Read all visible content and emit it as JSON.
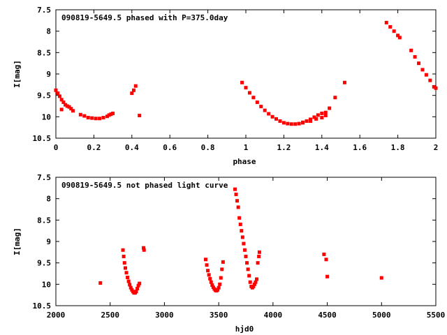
{
  "chart_data": [
    {
      "type": "scatter",
      "title": "090819-5649.5 phased with P=375.0day",
      "xlabel": "phase",
      "ylabel": "I[mag]",
      "xlim": [
        0,
        2
      ],
      "ylim": [
        7.5,
        10.5
      ],
      "y_inverted": true,
      "x_ticks": [
        "0",
        "0.2",
        "0.4",
        "0.6",
        "0.8",
        "1",
        "1.2",
        "1.4",
        "1.6",
        "1.8",
        "2"
      ],
      "y_ticks": [
        "7.5",
        "8",
        "8.5",
        "9",
        "9.5",
        "10",
        "10.5"
      ],
      "marker_color": "#ff0000",
      "grid": false,
      "series": [
        {
          "x": [
            0.0,
            0.01,
            0.02,
            0.03,
            0.04,
            0.05,
            0.06,
            0.07,
            0.08,
            0.09,
            0.03,
            0.13,
            0.15,
            0.17,
            0.19,
            0.21,
            0.23,
            0.25,
            0.27,
            0.28,
            0.29,
            0.3,
            0.4,
            0.41,
            0.42,
            0.44,
            0.98,
            1.0,
            1.02,
            1.04,
            1.06,
            1.08,
            1.1,
            1.12,
            1.14,
            1.16,
            1.18,
            1.2,
            1.22,
            1.24,
            1.26,
            1.28,
            1.3,
            1.32,
            1.34,
            1.36,
            1.38,
            1.4,
            1.42,
            1.3,
            1.34,
            1.37,
            1.4,
            1.42,
            1.44,
            1.47,
            1.52,
            1.74,
            1.76,
            1.78,
            1.8,
            1.81,
            1.87,
            1.89,
            1.91,
            1.93,
            1.95,
            1.97,
            1.99,
            2.0
          ],
          "y": [
            9.38,
            9.45,
            9.52,
            9.6,
            9.66,
            9.72,
            9.75,
            9.77,
            9.81,
            9.86,
            9.83,
            9.95,
            9.98,
            10.02,
            10.03,
            10.04,
            10.04,
            10.02,
            9.99,
            9.96,
            9.94,
            9.92,
            9.45,
            9.38,
            9.28,
            9.97,
            9.2,
            9.32,
            9.44,
            9.55,
            9.66,
            9.76,
            9.85,
            9.93,
            10.0,
            10.05,
            10.1,
            10.14,
            10.16,
            10.17,
            10.17,
            10.16,
            10.13,
            10.1,
            10.06,
            10.01,
            9.96,
            9.92,
            9.9,
            10.14,
            10.1,
            10.05,
            10.02,
            9.97,
            9.8,
            9.55,
            9.2,
            7.8,
            7.9,
            8.0,
            8.1,
            8.15,
            8.45,
            8.6,
            8.75,
            8.9,
            9.02,
            9.15,
            9.3,
            9.33
          ]
        }
      ]
    },
    {
      "type": "scatter",
      "title": "090819-5649.5 not phased light curve",
      "xlabel": "hjd0",
      "ylabel": "I[mag]",
      "xlim": [
        2000,
        5500
      ],
      "ylim": [
        7.5,
        10.5
      ],
      "y_inverted": true,
      "x_ticks": [
        "2000",
        "2500",
        "3000",
        "3500",
        "4000",
        "4500",
        "5000",
        "5500"
      ],
      "y_ticks": [
        "7.5",
        "8",
        "8.5",
        "9",
        "9.5",
        "10",
        "10.5"
      ],
      "marker_color": "#ff0000",
      "grid": false,
      "series": [
        {
          "x": [
            2410,
            2618,
            2625,
            2632,
            2640,
            2650,
            2660,
            2670,
            2680,
            2690,
            2700,
            2710,
            2720,
            2730,
            2740,
            2750,
            2760,
            2770,
            2808,
            2812,
            3380,
            3390,
            3400,
            3410,
            3420,
            3430,
            3440,
            3450,
            3460,
            3470,
            3480,
            3490,
            3500,
            3510,
            3520,
            3530,
            3540,
            3650,
            3660,
            3670,
            3680,
            3690,
            3700,
            3710,
            3720,
            3730,
            3740,
            3750,
            3760,
            3770,
            3780,
            3790,
            3800,
            3810,
            3820,
            3830,
            3840,
            3850,
            3860,
            3870,
            3875,
            4470,
            4490,
            4500,
            5000
          ],
          "y": [
            9.97,
            9.2,
            9.35,
            9.5,
            9.62,
            9.73,
            9.84,
            9.93,
            10.01,
            10.08,
            10.13,
            10.17,
            10.2,
            10.2,
            10.17,
            10.1,
            10.03,
            9.98,
            9.15,
            9.2,
            9.42,
            9.55,
            9.68,
            9.78,
            9.87,
            9.95,
            10.02,
            10.07,
            10.11,
            10.14,
            10.15,
            10.13,
            10.08,
            10.0,
            9.85,
            9.65,
            9.48,
            7.78,
            7.9,
            8.05,
            8.2,
            8.45,
            8.6,
            8.75,
            8.9,
            9.05,
            9.2,
            9.35,
            9.5,
            9.65,
            9.8,
            9.95,
            10.05,
            10.08,
            10.05,
            10.0,
            9.95,
            9.88,
            9.5,
            9.35,
            9.25,
            9.3,
            9.42,
            9.82,
            9.85
          ]
        }
      ]
    }
  ]
}
